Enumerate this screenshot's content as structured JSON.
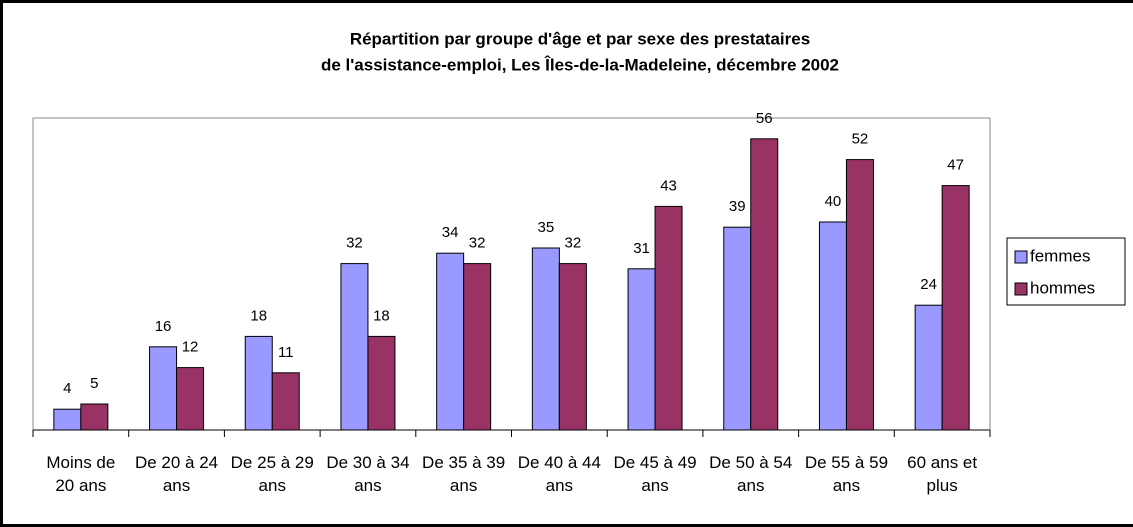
{
  "chart_data": {
    "type": "bar",
    "title": [
      "Répartition par groupe d'âge et par sexe des prestataires",
      "de l'assistance-emploi, Les Îles-de-la-Madeleine, décembre 2002"
    ],
    "categories": [
      "Moins de 20 ans",
      "De 20 à 24 ans",
      "De 25 à 29 ans",
      "De 30 à 34 ans",
      "De 35 à 39 ans",
      "De 40 à 44 ans",
      "De 45 à 49 ans",
      "De 50 à 54 ans",
      "De 55 à 59 ans",
      "60 ans et plus"
    ],
    "series": [
      {
        "name": "femmes",
        "color": "#9999ff",
        "values": [
          4,
          16,
          18,
          32,
          34,
          35,
          31,
          39,
          40,
          24
        ]
      },
      {
        "name": "hommes",
        "color": "#993366",
        "values": [
          5,
          12,
          11,
          18,
          32,
          32,
          43,
          56,
          52,
          47
        ]
      }
    ],
    "ylim": [
      0,
      60
    ],
    "legend": "right"
  }
}
